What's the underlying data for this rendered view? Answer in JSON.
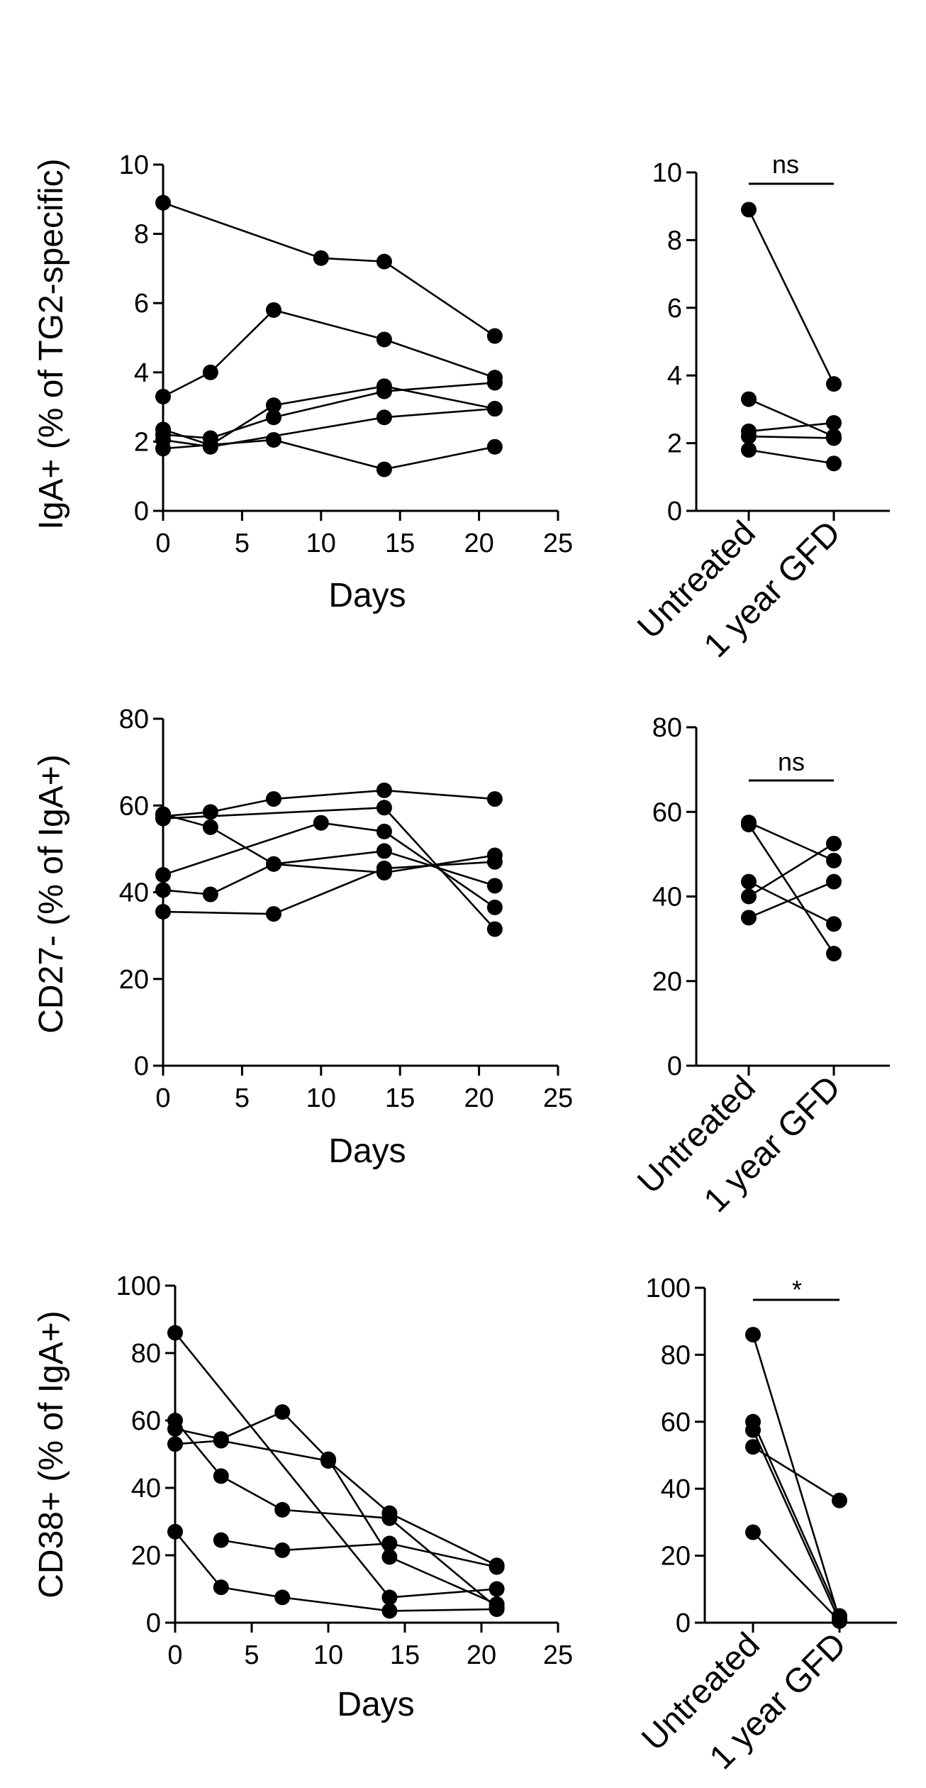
{
  "figure": {
    "background": "#ffffff",
    "ink_color": "#000000"
  },
  "chart_data": [
    {
      "id": "iga-time",
      "type": "line",
      "xlabel": "Days",
      "ylabel": "IgA+ (% of TG2-specific)",
      "xlim": [
        0,
        25
      ],
      "ylim": [
        0,
        10
      ],
      "xticks": [
        0,
        5,
        10,
        15,
        20,
        25
      ],
      "yticks": [
        0,
        2,
        4,
        6,
        8,
        10
      ],
      "series": [
        {
          "x": [
            0,
            10,
            14,
            21
          ],
          "y": [
            8.9,
            7.3,
            7.2,
            5.05
          ]
        },
        {
          "x": [
            0,
            3,
            7,
            14,
            21
          ],
          "y": [
            3.3,
            4.0,
            5.8,
            4.95,
            3.85
          ]
        },
        {
          "x": [
            0,
            3,
            7,
            14,
            21
          ],
          "y": [
            2.35,
            1.9,
            3.05,
            3.6,
            2.95
          ]
        },
        {
          "x": [
            0,
            3,
            7,
            14,
            21
          ],
          "y": [
            2.2,
            2.1,
            2.7,
            3.45,
            3.7
          ]
        },
        {
          "x": [
            0,
            3,
            14,
            21
          ],
          "y": [
            2.05,
            1.85,
            2.7,
            2.95
          ]
        },
        {
          "x": [
            0,
            7,
            14,
            21
          ],
          "y": [
            1.8,
            2.05,
            1.2,
            1.85
          ]
        }
      ]
    },
    {
      "id": "iga-pair",
      "type": "scatter",
      "categories": [
        "Untreated",
        "1 year GFD"
      ],
      "ylim": [
        0,
        10
      ],
      "yticks": [
        0,
        2,
        4,
        6,
        8,
        10
      ],
      "significance": "ns",
      "series": [
        {
          "values": [
            8.9,
            3.75
          ]
        },
        {
          "values": [
            3.3,
            2.2
          ]
        },
        {
          "values": [
            2.35,
            2.6
          ]
        },
        {
          "values": [
            2.2,
            2.15
          ]
        },
        {
          "values": [
            1.8,
            1.4
          ]
        }
      ]
    },
    {
      "id": "cd27-time",
      "type": "line",
      "xlabel": "Days",
      "ylabel": "CD27- (% of IgA+)",
      "xlim": [
        0,
        25
      ],
      "ylim": [
        0,
        80
      ],
      "xticks": [
        0,
        5,
        10,
        15,
        20,
        25
      ],
      "yticks": [
        0,
        20,
        40,
        60,
        80
      ],
      "series": [
        {
          "x": [
            0,
            3,
            7,
            14,
            21
          ],
          "y": [
            57.5,
            58.5,
            61.5,
            63.5,
            61.5
          ]
        },
        {
          "x": [
            0,
            14,
            21
          ],
          "y": [
            57.0,
            59.5,
            31.5
          ]
        },
        {
          "x": [
            0,
            3,
            7,
            14,
            21
          ],
          "y": [
            58.0,
            55.0,
            46.5,
            44.5,
            48.5
          ]
        },
        {
          "x": [
            0,
            10,
            14,
            21
          ],
          "y": [
            44.0,
            56.0,
            54.0,
            36.5
          ]
        },
        {
          "x": [
            0,
            3,
            7,
            14,
            21
          ],
          "y": [
            40.5,
            39.5,
            46.5,
            49.5,
            41.5
          ]
        },
        {
          "x": [
            0,
            7,
            14,
            21
          ],
          "y": [
            35.5,
            35.0,
            45.5,
            47.0
          ]
        }
      ]
    },
    {
      "id": "cd27-pair",
      "type": "scatter",
      "categories": [
        "Untreated",
        "1 year GFD"
      ],
      "ylim": [
        0,
        80
      ],
      "yticks": [
        0,
        20,
        40,
        60,
        80
      ],
      "significance": "ns",
      "series": [
        {
          "values": [
            57.5,
            48.5
          ]
        },
        {
          "values": [
            57.0,
            26.5
          ]
        },
        {
          "values": [
            43.5,
            33.5
          ]
        },
        {
          "values": [
            40.0,
            52.5
          ]
        },
        {
          "values": [
            35.0,
            43.5
          ]
        }
      ]
    },
    {
      "id": "cd38-time",
      "type": "line",
      "xlabel": "Days",
      "ylabel": "CD38+ (% of IgA+)",
      "xlim": [
        0,
        25
      ],
      "ylim": [
        0,
        100
      ],
      "xticks": [
        0,
        5,
        10,
        15,
        20,
        25
      ],
      "yticks": [
        0,
        20,
        40,
        60,
        80,
        100
      ],
      "series": [
        {
          "x": [
            0,
            14,
            21
          ],
          "y": [
            86,
            7.5,
            10.0
          ]
        },
        {
          "x": [
            0,
            3,
            7,
            10,
            14,
            21
          ],
          "y": [
            57.5,
            54.5,
            62.5,
            48.5,
            19.5,
            5.5
          ]
        },
        {
          "x": [
            0,
            3,
            10,
            14,
            21
          ],
          "y": [
            53.0,
            54.0,
            48.0,
            32.5,
            17.0
          ]
        },
        {
          "x": [
            0,
            3,
            7,
            14,
            21
          ],
          "y": [
            60.0,
            43.5,
            33.5,
            31.0,
            4.5
          ]
        },
        {
          "x": [
            3,
            7,
            14,
            21
          ],
          "y": [
            24.5,
            21.5,
            23.5,
            16.5
          ]
        },
        {
          "x": [
            0,
            3,
            7,
            14,
            21
          ],
          "y": [
            27.0,
            10.5,
            7.5,
            3.5,
            4.0
          ]
        }
      ]
    },
    {
      "id": "cd38-pair",
      "type": "scatter",
      "categories": [
        "Untreated",
        "1 year GFD"
      ],
      "ylim": [
        0,
        100
      ],
      "yticks": [
        0,
        20,
        40,
        60,
        80,
        100
      ],
      "significance": "*",
      "series": [
        {
          "values": [
            86,
            1.0
          ]
        },
        {
          "values": [
            60,
            2.0
          ]
        },
        {
          "values": [
            57.5,
            0.5
          ]
        },
        {
          "values": [
            52.5,
            36.5
          ]
        },
        {
          "values": [
            27,
            0.5
          ]
        }
      ]
    }
  ]
}
